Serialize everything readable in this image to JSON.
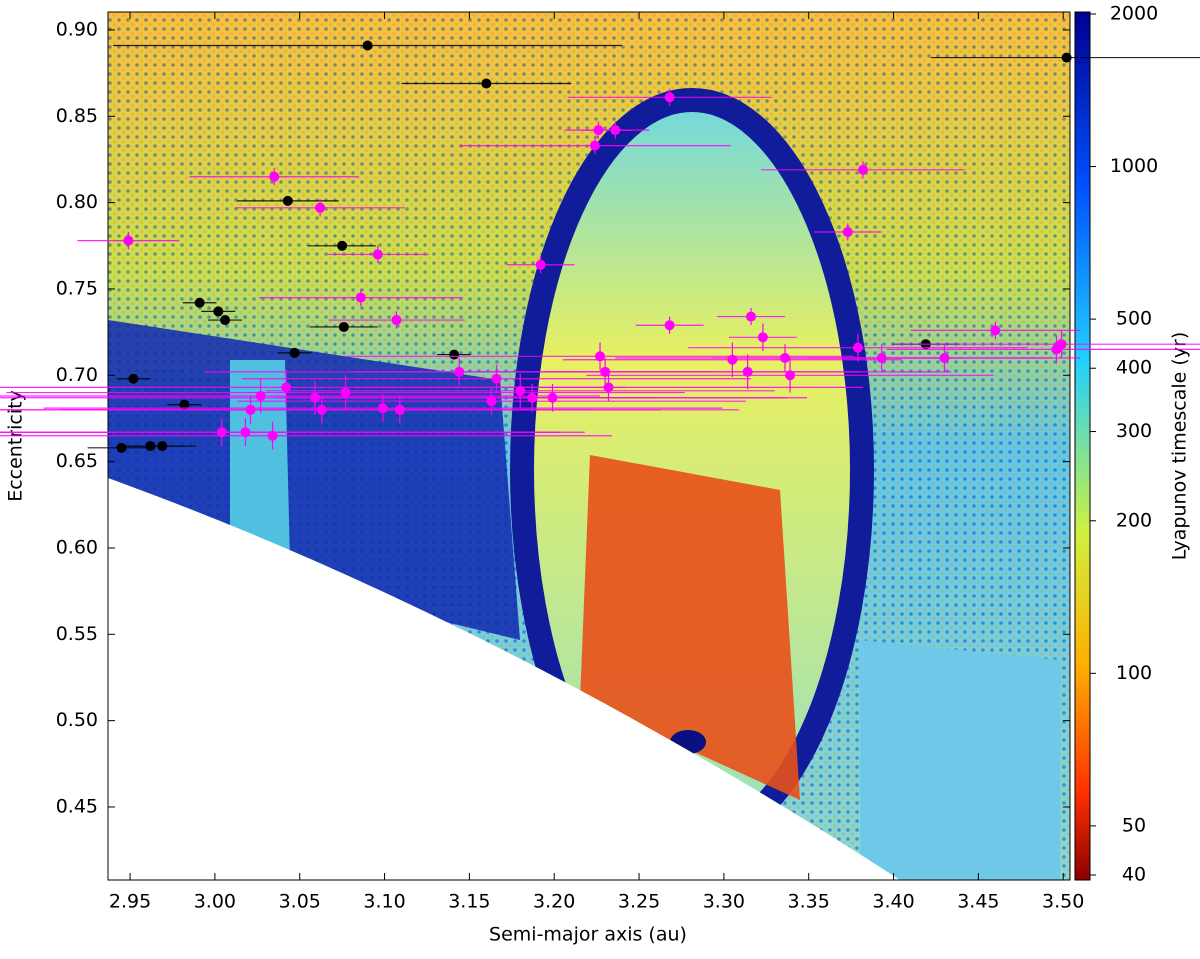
{
  "chart_data": {
    "type": "scatter",
    "xlabel": "Semi-major axis (au)",
    "ylabel": "Eccentricity",
    "xlim": [
      2.937,
      3.504
    ],
    "ylim": [
      0.4077,
      0.9104
    ],
    "xticks": [
      {
        "value": 2.95,
        "label": "2.95"
      },
      {
        "value": 3.0,
        "label": "3.00"
      },
      {
        "value": 3.05,
        "label": "3.05"
      },
      {
        "value": 3.1,
        "label": "3.10"
      },
      {
        "value": 3.15,
        "label": "3.15"
      },
      {
        "value": 3.2,
        "label": "3.20"
      },
      {
        "value": 3.25,
        "label": "3.25"
      },
      {
        "value": 3.3,
        "label": "3.30"
      },
      {
        "value": 3.35,
        "label": "3.35"
      },
      {
        "value": 3.4,
        "label": "3.40"
      },
      {
        "value": 3.45,
        "label": "3.45"
      },
      {
        "value": 3.5,
        "label": "3.50"
      }
    ],
    "yticks": [
      {
        "value": 0.9,
        "label": "0.90"
      },
      0.85,
      {
        "value": 0.8,
        "label": "0.80"
      },
      0.75,
      {
        "value": 0.7,
        "label": "0.70"
      },
      0.65,
      {
        "value": 0.6,
        "label": "0.60"
      },
      0.55,
      {
        "value": 0.5,
        "label": "0.50"
      },
      0.45
    ],
    "colorbar": {
      "label": "Lyapunov timescale (yr)",
      "lim": [
        40,
        2000
      ],
      "log": true,
      "ticks": [
        40,
        50,
        100,
        200,
        300,
        400,
        500,
        1000,
        2000
      ]
    },
    "series": [
      {
        "color": "#000000",
        "x": [
          3.09,
          3.16,
          3.502,
          3.043,
          3.075,
          2.991,
          3.002,
          3.006,
          3.076,
          3.141,
          3.047,
          3.419,
          2.952,
          2.982,
          2.945,
          2.962,
          2.969
        ],
        "y": [
          0.891,
          0.869,
          0.884,
          0.801,
          0.775,
          0.742,
          0.737,
          0.732,
          0.728,
          0.712,
          0.713,
          0.718,
          0.698,
          0.683,
          0.658,
          0.659,
          0.659
        ],
        "xerr": [
          0.15,
          0.05,
          0.08,
          0.03,
          0.02,
          0.01,
          0.01,
          0.01,
          0.02,
          0.01,
          0.01,
          0.02,
          0.01,
          0.01,
          0.02,
          0.02,
          0.02
        ]
      },
      {
        "color": "#ff00ff",
        "x": [
          2.949,
          3.035,
          3.062,
          3.096,
          3.086,
          3.107,
          3.268,
          3.236,
          3.226,
          3.224,
          3.382,
          3.373,
          3.192,
          3.268,
          3.316,
          3.46,
          3.379,
          3.323,
          3.499,
          3.496,
          3.43,
          3.393,
          3.227,
          3.305,
          3.336,
          3.23,
          3.144,
          3.314,
          3.339,
          3.18,
          3.166,
          3.187,
          3.199,
          3.163,
          3.232,
          3.042,
          3.027,
          3.059,
          3.077,
          3.063,
          3.099,
          3.109,
          3.021,
          3.034,
          3.004,
          3.018
        ],
        "y": [
          0.778,
          0.815,
          0.797,
          0.77,
          0.745,
          0.732,
          0.861,
          0.842,
          0.842,
          0.833,
          0.819,
          0.783,
          0.764,
          0.729,
          0.734,
          0.726,
          0.716,
          0.722,
          0.718,
          0.715,
          0.71,
          0.71,
          0.711,
          0.709,
          0.71,
          0.702,
          0.702,
          0.702,
          0.7,
          0.691,
          0.698,
          0.687,
          0.687,
          0.685,
          0.693,
          0.693,
          0.688,
          0.687,
          0.69,
          0.68,
          0.681,
          0.68,
          0.68,
          0.665,
          0.667,
          0.667
        ],
        "xerr": [
          0.03,
          0.05,
          0.05,
          0.03,
          0.06,
          0.04,
          0.06,
          0.02,
          0.02,
          0.08,
          0.06,
          0.02,
          0.02,
          0.02,
          0.02,
          0.05,
          0.1,
          0.02,
          0.1,
          0.1,
          0.08,
          0.1,
          0.15,
          0.1,
          0.1,
          0.15,
          0.15,
          0.12,
          0.12,
          0.15,
          0.15,
          0.15,
          0.15,
          0.15,
          0.15,
          0.2,
          0.2,
          0.2,
          0.2,
          0.2,
          0.2,
          0.2,
          0.2,
          0.2,
          0.2,
          0.2
        ],
        "yerr": [
          0.005,
          0.005,
          0.005,
          0.005,
          0.005,
          0.005,
          0.005,
          0.005,
          0.005,
          0.005,
          0.005,
          0.005,
          0.005,
          0.005,
          0.005,
          0.005,
          0.008,
          0.008,
          0.008,
          0.008,
          0.008,
          0.008,
          0.008,
          0.01,
          0.008,
          0.008,
          0.008,
          0.01,
          0.01,
          0.01,
          0.008,
          0.008,
          0.008,
          0.008,
          0.008,
          0.01,
          0.01,
          0.01,
          0.01,
          0.008,
          0.008,
          0.008,
          0.008,
          0.008,
          0.008,
          0.008
        ]
      }
    ]
  }
}
